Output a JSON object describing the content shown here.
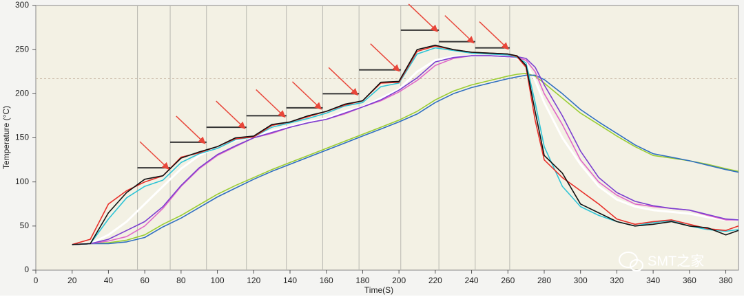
{
  "chart_data": {
    "type": "line",
    "x_label": "Time(S)",
    "y_label": "Temperature (°C)",
    "watermark": "SMT之家",
    "xlim": [
      0,
      387
    ],
    "ylim": [
      0,
      300
    ],
    "xticks": [
      0,
      20,
      40,
      60,
      80,
      100,
      120,
      140,
      160,
      180,
      200,
      220,
      240,
      260,
      280,
      300,
      320,
      340,
      360,
      380
    ],
    "yticks": [
      0,
      50,
      100,
      150,
      200,
      250,
      300
    ],
    "zone_boundaries": [
      56,
      74,
      94,
      116,
      138,
      158,
      178,
      201,
      222,
      242,
      261
    ],
    "reference_line": 217,
    "setpoints": [
      {
        "x": [
          56,
          74
        ],
        "y": 116
      },
      {
        "x": [
          74,
          94
        ],
        "y": 145
      },
      {
        "x": [
          94,
          116
        ],
        "y": 162
      },
      {
        "x": [
          116,
          138
        ],
        "y": 175
      },
      {
        "x": [
          138,
          158
        ],
        "y": 184
      },
      {
        "x": [
          158,
          178
        ],
        "y": 200
      },
      {
        "x": [
          178,
          201
        ],
        "y": 227
      },
      {
        "x": [
          201,
          222
        ],
        "y": 272
      },
      {
        "x": [
          222,
          242
        ],
        "y": 259
      },
      {
        "x": [
          242,
          261
        ],
        "y": 252
      }
    ],
    "arrow_color": "#e8463a",
    "x": [
      20,
      30,
      40,
      50,
      60,
      70,
      80,
      90,
      100,
      110,
      120,
      130,
      140,
      150,
      160,
      170,
      180,
      190,
      200,
      210,
      220,
      230,
      240,
      250,
      260,
      265,
      270,
      275,
      280,
      290,
      300,
      310,
      320,
      330,
      340,
      350,
      360,
      370,
      380,
      387
    ],
    "series": [
      {
        "color": "#ffffff",
        "values": [
          29,
          30,
          40,
          55,
          75,
          95,
          115,
          130,
          140,
          147,
          152,
          158,
          163,
          168,
          172,
          180,
          185,
          195,
          205,
          225,
          238,
          242,
          243,
          243,
          242,
          240,
          235,
          215,
          190,
          150,
          120,
          95,
          80,
          72,
          68,
          66,
          64,
          60,
          57,
          57
        ]
      },
      {
        "color": "#9acd32",
        "values": [
          29,
          30,
          31,
          34,
          40,
          52,
          62,
          74,
          86,
          96,
          105,
          114,
          122,
          130,
          138,
          146,
          154,
          162,
          170,
          180,
          193,
          203,
          210,
          215,
          220,
          222,
          223,
          220,
          212,
          195,
          178,
          165,
          152,
          140,
          130,
          127,
          124,
          120,
          115,
          112
        ]
      },
      {
        "color": "#2f6fc0",
        "values": [
          29,
          30,
          30,
          32,
          37,
          49,
          59,
          71,
          83,
          93,
          103,
          112,
          120,
          128,
          136,
          144,
          152,
          160,
          168,
          177,
          190,
          200,
          207,
          212,
          217,
          219,
          221,
          221,
          216,
          200,
          182,
          168,
          155,
          142,
          132,
          128,
          124,
          119,
          114,
          111
        ]
      },
      {
        "color": "#e066c8",
        "values": [
          29,
          30,
          33,
          38,
          50,
          70,
          95,
          115,
          130,
          140,
          150,
          155,
          162,
          167,
          171,
          177,
          185,
          192,
          202,
          215,
          232,
          240,
          243,
          243,
          242,
          241,
          238,
          225,
          200,
          165,
          125,
          100,
          85,
          75,
          72,
          70,
          68,
          62,
          57,
          57
        ]
      },
      {
        "color": "#7b3fd0",
        "values": [
          29,
          30,
          35,
          45,
          55,
          72,
          96,
          116,
          131,
          141,
          150,
          156,
          162,
          167,
          171,
          178,
          185,
          193,
          204,
          218,
          236,
          241,
          243,
          243,
          242,
          242,
          240,
          230,
          210,
          175,
          135,
          105,
          88,
          78,
          73,
          70,
          68,
          63,
          58,
          57
        ]
      },
      {
        "color": "#2ec4d6",
        "values": [
          29,
          30,
          58,
          82,
          95,
          102,
          122,
          132,
          138,
          148,
          151,
          162,
          167,
          172,
          178,
          186,
          190,
          208,
          212,
          245,
          252,
          249,
          246,
          245,
          244,
          241,
          235,
          190,
          140,
          95,
          72,
          62,
          55,
          50,
          54,
          56,
          50,
          46,
          44,
          46
        ]
      },
      {
        "color": "#e8302a",
        "values": [
          29,
          35,
          75,
          90,
          100,
          107,
          128,
          133,
          140,
          149,
          151,
          164,
          168,
          174,
          180,
          187,
          192,
          212,
          213,
          248,
          254,
          250,
          247,
          246,
          245,
          242,
          230,
          170,
          125,
          105,
          90,
          75,
          58,
          52,
          55,
          57,
          52,
          47,
          45,
          50
        ]
      },
      {
        "color": "#111111",
        "values": [
          29,
          30,
          65,
          88,
          103,
          107,
          127,
          134,
          140,
          150,
          152,
          165,
          168,
          175,
          180,
          188,
          192,
          213,
          214,
          250,
          255,
          250,
          247,
          246,
          245,
          243,
          232,
          180,
          130,
          110,
          75,
          65,
          55,
          50,
          52,
          55,
          50,
          48,
          40,
          45
        ]
      }
    ]
  }
}
